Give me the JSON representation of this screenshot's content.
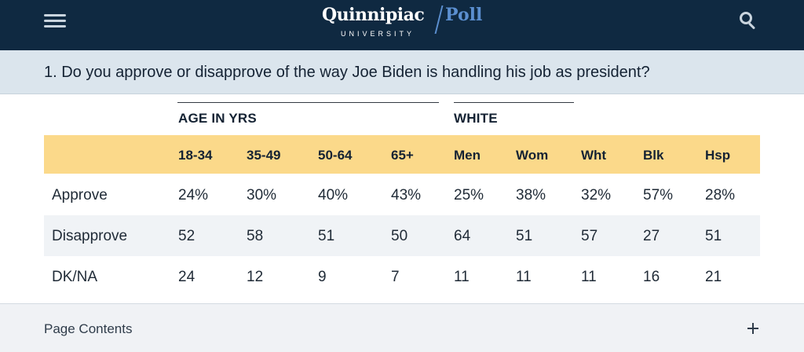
{
  "header": {
    "logo_name": "Quinnipiac",
    "logo_poll": "Poll",
    "logo_sub": "UNIVERSITY",
    "menu_icon": "hamburger-menu-icon",
    "search_icon": "search-icon"
  },
  "question": "1. Do you approve or disapprove of the way Joe Biden is handling his job as president?",
  "table": {
    "groups": [
      "AGE IN YRS",
      "WHITE"
    ],
    "columns": [
      "18-34",
      "35-49",
      "50-64",
      "65+",
      "Men",
      "Wom",
      "Wht",
      "Blk",
      "Hsp"
    ],
    "rows": [
      {
        "label": "Approve",
        "values": [
          "24%",
          "30%",
          "40%",
          "43%",
          "25%",
          "38%",
          "32%",
          "57%",
          "28%"
        ]
      },
      {
        "label": "Disapprove",
        "values": [
          "52",
          "58",
          "51",
          "50",
          "64",
          "51",
          "57",
          "27",
          "51"
        ]
      },
      {
        "label": "DK/NA",
        "values": [
          "24",
          "12",
          "9",
          "7",
          "11",
          "11",
          "11",
          "16",
          "21"
        ]
      }
    ]
  },
  "page_contents": {
    "label": "Page Contents",
    "expand_icon": "plus-icon"
  },
  "colors": {
    "header_bg": "#0f2941",
    "question_band": "#dbe5ed",
    "column_band": "#fbd98a",
    "accent_poll": "#5b8fd0"
  }
}
